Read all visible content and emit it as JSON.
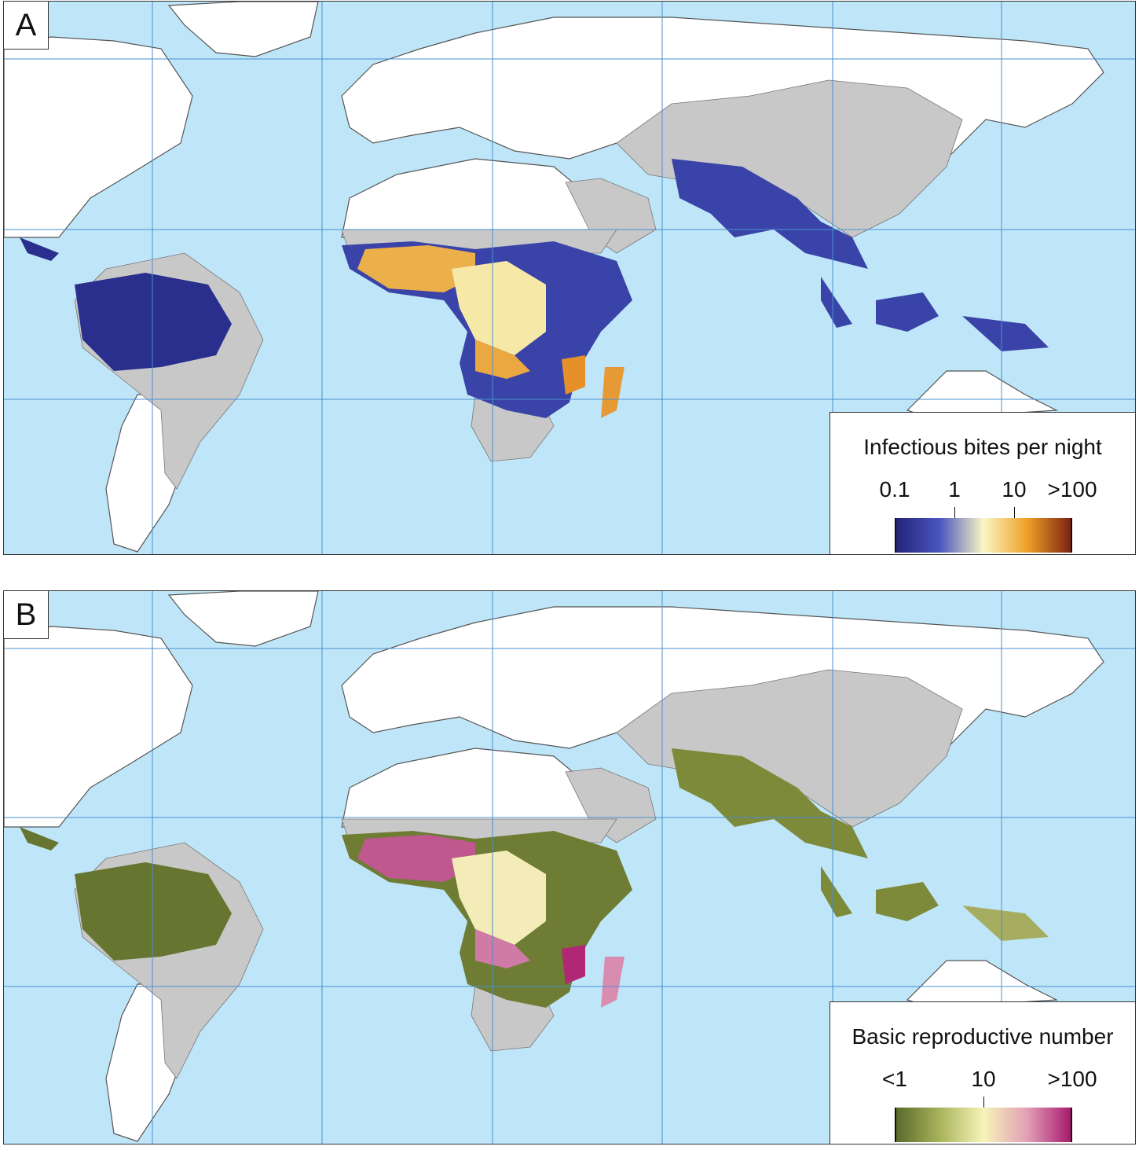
{
  "panels": [
    {
      "letter": "A",
      "legend": {
        "title": "Infectious bites per night",
        "ticks": [
          "0.1",
          "1",
          "10",
          ">100"
        ],
        "colors": [
          "#24247a",
          "#4a56c0",
          "#fbf6c4",
          "#efa128",
          "#7e2212"
        ]
      }
    },
    {
      "letter": "B",
      "legend": {
        "title": "Basic reproductive number",
        "ticks": [
          "<1",
          "10",
          ">100"
        ],
        "colors": [
          "#5a6a2a",
          "#a8b45c",
          "#f7f3b8",
          "#e1a0b6",
          "#a81a6e"
        ]
      }
    }
  ],
  "map_style": {
    "ocean": "#bfe6f8",
    "land": "#ffffff",
    "no_data_land": "#c8c8c8",
    "gridlines": "#4a8fd0",
    "coast": "#555555"
  }
}
